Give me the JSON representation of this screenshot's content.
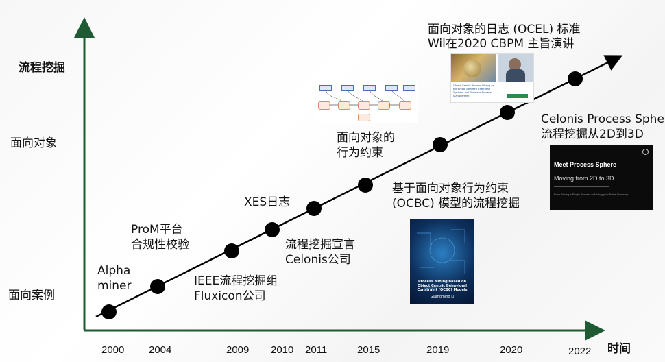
{
  "axes": {
    "y_top_label": "流程挖掘",
    "y_mid_label": "面向对象",
    "y_bottom_label": "面向案例",
    "x_label": "时间"
  },
  "years": [
    "2000",
    "2004",
    "2009",
    "2010",
    "2011",
    "2015",
    "2019",
    "2020",
    "2022"
  ],
  "events": {
    "alpha_line1": "Alpha",
    "alpha_line2": "miner",
    "prom_line1": "ProM平台",
    "prom_line2": "合规性校验",
    "ieee_line1": "IEEE流程挖掘组",
    "ieee_line2": "Fluxicon公司",
    "xes": "XES日志",
    "manifesto_line1": "流程挖掘宣言",
    "manifesto_line2": "Celonis公司",
    "oo_constraint_line1": "面向对象的",
    "oo_constraint_line2": "行为约束",
    "ocbc_line1": "基于面向对象行为约束",
    "ocbc_line2": "(OCBC) 模型的流程挖掘",
    "ocel_line1": "面向对象的日志 (OCEL) 标准",
    "ocel_line2": "Wil在2020 CBPM 主旨演讲",
    "sphere_line1": "Celonis Process Sphere",
    "sphere_line2": "流程挖掘从2D到3D"
  },
  "thumbs": {
    "sphere_title": "Meet Process Sphere",
    "sphere_sub": "Moving from 2D to 3D",
    "sphere_small": "From Mining a Single Process to Mining your Entire Business.",
    "book_title": "Process Mining based on Object Centric Behavioral Constraint (OCBC) Models",
    "book_author": "Guangming Li",
    "keynote_text": "Object-Centric Process Mining as the Bridge Between Enterprise Systems and Business Process Management"
  },
  "colors": {
    "axis": "#1f5a32",
    "line": "#000000"
  }
}
